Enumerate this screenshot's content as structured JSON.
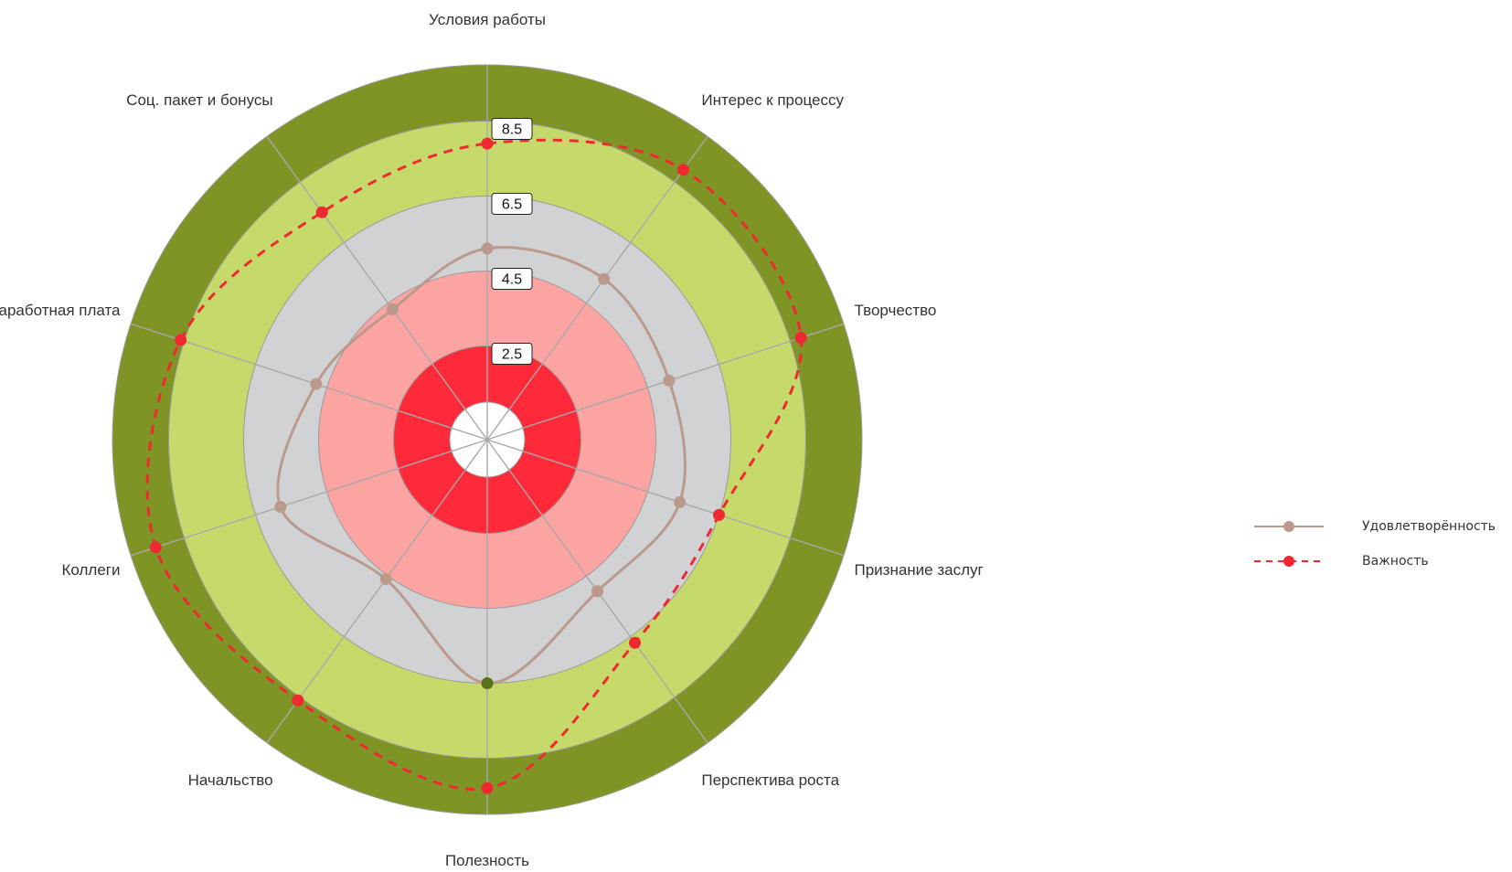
{
  "chart_data": {
    "type": "radar",
    "title": "",
    "categories": [
      "Условия работы",
      "Интерес к процессу",
      "Творчество",
      "Признание заслуг",
      "Перспектива роста",
      "Полезность",
      "Начальство",
      "Коллеги",
      "Заработная плата",
      "Соц. пакет и бонусы"
    ],
    "rlim": [
      0,
      10
    ],
    "bands": [
      {
        "from": 0.0,
        "to": 1.0,
        "color": "#ffffff"
      },
      {
        "from": 1.0,
        "to": 2.5,
        "color": "#fe2a3a"
      },
      {
        "from": 2.5,
        "to": 4.5,
        "color": "#fca4a2"
      },
      {
        "from": 4.5,
        "to": 6.5,
        "color": "#d0d2d4"
      },
      {
        "from": 6.5,
        "to": 8.5,
        "color": "#c5da6b"
      },
      {
        "from": 8.5,
        "to": 10.0,
        "color": "#7e9525"
      }
    ],
    "ring_labels": [
      "2.5",
      "4.5",
      "6.5",
      "8.5"
    ],
    "series": [
      {
        "name": "Удовлетворённость",
        "values": [
          5.1,
          5.3,
          5.1,
          5.4,
          5.0,
          6.5,
          4.6,
          5.8,
          4.8,
          4.3
        ],
        "color": "#bb9a8c",
        "line_style": "solid",
        "highlight": {
          "index": 5,
          "color": "#56731b"
        }
      },
      {
        "name": "Важность",
        "values": [
          7.9,
          8.9,
          8.8,
          6.5,
          6.7,
          9.3,
          8.6,
          9.3,
          8.6,
          7.5
        ],
        "color": "#f02832",
        "line_style": "dashed"
      }
    ],
    "legend_position": "right"
  }
}
